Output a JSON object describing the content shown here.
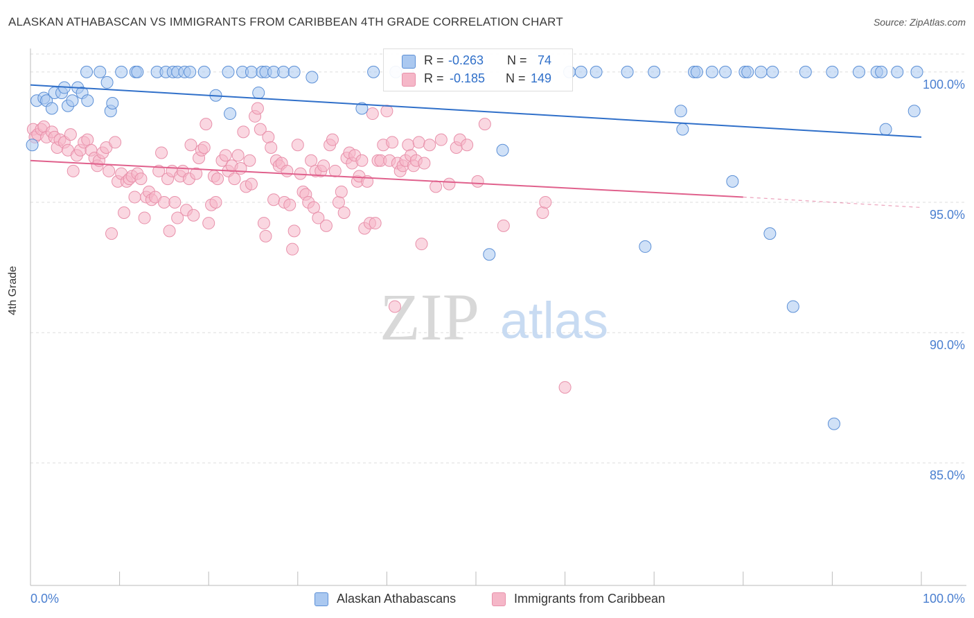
{
  "title": "ALASKAN ATHABASCAN VS IMMIGRANTS FROM CARIBBEAN 4TH GRADE CORRELATION CHART",
  "source": "Source: ZipAtlas.com",
  "watermark": {
    "zip": "ZIP",
    "atlas": "atlas"
  },
  "colors": {
    "blue_fill": "#aac8f0",
    "blue_stroke": "#5b8fd6",
    "blue_line": "#2f6fc9",
    "pink_fill": "#f5b7c8",
    "pink_stroke": "#e890aa",
    "pink_line": "#e0608c",
    "axis_text": "#4a7fd0",
    "grid": "#dddddd"
  },
  "stats": {
    "r_label": "R =",
    "n_label": "N =",
    "blue": {
      "r": "-0.263",
      "n": "74"
    },
    "pink": {
      "r": "-0.185",
      "n": "149"
    }
  },
  "legend": {
    "blue": "Alaskan Athabascans",
    "pink": "Immigrants from Caribbean"
  },
  "chart_data": {
    "type": "scatter",
    "title": "ALASKAN ATHABASCAN VS IMMIGRANTS FROM CARIBBEAN 4TH GRADE CORRELATION CHART",
    "xlabel": "",
    "ylabel": "4th Grade",
    "xlim": [
      0,
      100
    ],
    "ylim": [
      80.3,
      100.9
    ],
    "x_tick_labels": [
      "0.0%",
      "100.0%"
    ],
    "y_ticks": [
      100,
      95,
      90,
      85
    ],
    "y_tick_labels": [
      "100.0%",
      "95.0%",
      "90.0%",
      "85.0%"
    ],
    "grid": "horizontal dashed",
    "legend_position": "bottom",
    "series": [
      {
        "name": "Alaskan Athabascans",
        "color": "#aac8f0",
        "trend": {
          "x": [
            0,
            100
          ],
          "y": [
            99.5,
            97.5
          ]
        },
        "points": [
          [
            0.2,
            97.2
          ],
          [
            0.7,
            98.9
          ],
          [
            1.5,
            99.0
          ],
          [
            1.8,
            98.9
          ],
          [
            2.4,
            98.6
          ],
          [
            2.7,
            99.2
          ],
          [
            3.5,
            99.2
          ],
          [
            3.8,
            99.4
          ],
          [
            4.2,
            98.7
          ],
          [
            4.7,
            98.9
          ],
          [
            5.3,
            99.4
          ],
          [
            5.8,
            99.2
          ],
          [
            6.4,
            98.9
          ],
          [
            6.3,
            100.0
          ],
          [
            7.8,
            100.0
          ],
          [
            8.6,
            99.6
          ],
          [
            9.0,
            98.5
          ],
          [
            9.2,
            98.8
          ],
          [
            10.2,
            100.0
          ],
          [
            11.8,
            100.0
          ],
          [
            12.0,
            100.0
          ],
          [
            14.2,
            100.0
          ],
          [
            15.2,
            100.0
          ],
          [
            16.0,
            100.0
          ],
          [
            16.5,
            100.0
          ],
          [
            17.3,
            100.0
          ],
          [
            17.9,
            100.0
          ],
          [
            19.5,
            100.0
          ],
          [
            20.8,
            99.1
          ],
          [
            22.2,
            100.0
          ],
          [
            22.4,
            98.4
          ],
          [
            23.8,
            100.0
          ],
          [
            24.8,
            100.0
          ],
          [
            25.6,
            99.2
          ],
          [
            26.0,
            100.0
          ],
          [
            26.4,
            100.0
          ],
          [
            27.3,
            100.0
          ],
          [
            28.4,
            100.0
          ],
          [
            29.6,
            100.0
          ],
          [
            31.6,
            99.8
          ],
          [
            37.2,
            98.6
          ],
          [
            38.5,
            100.0
          ],
          [
            41.0,
            100.0
          ],
          [
            42.3,
            100.0
          ],
          [
            50.0,
            100.0
          ],
          [
            51.5,
            93.0
          ],
          [
            53.0,
            97.0
          ],
          [
            60.5,
            100.0
          ],
          [
            61.8,
            100.0
          ],
          [
            63.5,
            100.0
          ],
          [
            67.0,
            100.0
          ],
          [
            69.0,
            93.3
          ],
          [
            70.0,
            100.0
          ],
          [
            73.0,
            98.5
          ],
          [
            73.2,
            97.8
          ],
          [
            74.5,
            100.0
          ],
          [
            74.8,
            100.0
          ],
          [
            76.5,
            100.0
          ],
          [
            78.0,
            100.0
          ],
          [
            78.8,
            95.8
          ],
          [
            80.2,
            100.0
          ],
          [
            80.5,
            100.0
          ],
          [
            82.0,
            100.0
          ],
          [
            83.0,
            93.8
          ],
          [
            83.3,
            100.0
          ],
          [
            85.6,
            91.0
          ],
          [
            87.0,
            100.0
          ],
          [
            90.0,
            100.0
          ],
          [
            90.2,
            86.5
          ],
          [
            93.0,
            100.0
          ],
          [
            95.0,
            100.0
          ],
          [
            95.5,
            100.0
          ],
          [
            96.0,
            97.8
          ],
          [
            99.2,
            98.5
          ],
          [
            99.5,
            100.0
          ],
          [
            97.3,
            100.0
          ]
        ]
      },
      {
        "name": "Immigrants from Caribbean",
        "color": "#f5b7c8",
        "trend": {
          "x": [
            0,
            80
          ],
          "y": [
            96.6,
            95.2
          ]
        },
        "trend_dashed": {
          "x": [
            80,
            100
          ],
          "y": [
            95.2,
            94.8
          ]
        },
        "points": [
          [
            0.3,
            97.8
          ],
          [
            0.5,
            97.5
          ],
          [
            0.8,
            97.6
          ],
          [
            1.2,
            97.8
          ],
          [
            1.5,
            97.9
          ],
          [
            1.8,
            97.5
          ],
          [
            2.4,
            97.7
          ],
          [
            2.7,
            97.5
          ],
          [
            3.0,
            97.1
          ],
          [
            3.3,
            97.4
          ],
          [
            3.8,
            97.3
          ],
          [
            4.2,
            97.0
          ],
          [
            4.5,
            97.6
          ],
          [
            4.8,
            96.2
          ],
          [
            5.2,
            96.8
          ],
          [
            5.6,
            97.0
          ],
          [
            6.0,
            97.3
          ],
          [
            6.4,
            97.4
          ],
          [
            6.8,
            97.0
          ],
          [
            7.2,
            96.7
          ],
          [
            7.5,
            96.4
          ],
          [
            7.7,
            96.6
          ],
          [
            8.1,
            96.9
          ],
          [
            8.5,
            97.1
          ],
          [
            8.8,
            96.2
          ],
          [
            9.1,
            93.8
          ],
          [
            9.5,
            97.3
          ],
          [
            9.8,
            95.8
          ],
          [
            10.2,
            96.1
          ],
          [
            10.5,
            94.6
          ],
          [
            10.8,
            95.8
          ],
          [
            11.1,
            95.9
          ],
          [
            11.4,
            96.0
          ],
          [
            11.7,
            95.2
          ],
          [
            12.0,
            96.1
          ],
          [
            12.4,
            95.9
          ],
          [
            12.8,
            94.4
          ],
          [
            13.0,
            95.2
          ],
          [
            13.3,
            95.4
          ],
          [
            13.6,
            95.1
          ],
          [
            14.0,
            95.2
          ],
          [
            14.4,
            96.2
          ],
          [
            14.7,
            96.9
          ],
          [
            15.0,
            95.0
          ],
          [
            15.4,
            95.9
          ],
          [
            15.6,
            93.9
          ],
          [
            15.9,
            96.2
          ],
          [
            16.2,
            95.0
          ],
          [
            16.5,
            94.4
          ],
          [
            16.8,
            96.0
          ],
          [
            17.1,
            96.2
          ],
          [
            17.5,
            94.7
          ],
          [
            17.8,
            95.9
          ],
          [
            18.0,
            97.2
          ],
          [
            18.3,
            94.5
          ],
          [
            18.6,
            96.1
          ],
          [
            18.9,
            96.7
          ],
          [
            19.2,
            97.0
          ],
          [
            19.5,
            97.1
          ],
          [
            19.7,
            98.0
          ],
          [
            20.0,
            94.2
          ],
          [
            20.3,
            94.9
          ],
          [
            20.6,
            96.0
          ],
          [
            20.8,
            95.0
          ],
          [
            21.0,
            95.9
          ],
          [
            21.5,
            96.6
          ],
          [
            21.9,
            96.8
          ],
          [
            22.2,
            96.2
          ],
          [
            22.6,
            96.4
          ],
          [
            22.9,
            95.9
          ],
          [
            23.3,
            96.8
          ],
          [
            23.6,
            96.3
          ],
          [
            23.9,
            97.7
          ],
          [
            24.2,
            95.6
          ],
          [
            24.6,
            96.6
          ],
          [
            24.8,
            95.7
          ],
          [
            25.2,
            98.3
          ],
          [
            25.5,
            98.6
          ],
          [
            25.8,
            97.8
          ],
          [
            26.2,
            94.2
          ],
          [
            26.4,
            93.7
          ],
          [
            26.7,
            97.5
          ],
          [
            27.0,
            97.1
          ],
          [
            27.3,
            95.1
          ],
          [
            27.6,
            96.6
          ],
          [
            27.9,
            96.4
          ],
          [
            28.2,
            96.5
          ],
          [
            28.5,
            95.0
          ],
          [
            28.8,
            96.2
          ],
          [
            29.1,
            94.9
          ],
          [
            29.4,
            93.2
          ],
          [
            29.6,
            93.9
          ],
          [
            30.0,
            97.2
          ],
          [
            30.3,
            96.1
          ],
          [
            30.6,
            95.4
          ],
          [
            30.9,
            95.3
          ],
          [
            31.2,
            95.0
          ],
          [
            31.5,
            96.6
          ],
          [
            31.8,
            94.8
          ],
          [
            32.0,
            96.2
          ],
          [
            32.3,
            94.4
          ],
          [
            32.6,
            96.2
          ],
          [
            32.9,
            96.4
          ],
          [
            33.2,
            94.1
          ],
          [
            33.6,
            97.2
          ],
          [
            33.9,
            97.4
          ],
          [
            34.2,
            96.2
          ],
          [
            34.6,
            95.0
          ],
          [
            34.9,
            95.4
          ],
          [
            35.2,
            94.6
          ],
          [
            35.5,
            96.7
          ],
          [
            35.8,
            96.9
          ],
          [
            36.1,
            96.5
          ],
          [
            36.4,
            96.8
          ],
          [
            36.7,
            95.8
          ],
          [
            36.9,
            96.0
          ],
          [
            37.2,
            96.6
          ],
          [
            37.5,
            94.0
          ],
          [
            37.8,
            95.8
          ],
          [
            38.1,
            94.2
          ],
          [
            38.4,
            98.4
          ],
          [
            38.7,
            94.2
          ],
          [
            39.0,
            96.6
          ],
          [
            39.3,
            96.6
          ],
          [
            39.6,
            97.2
          ],
          [
            40.0,
            98.5
          ],
          [
            40.3,
            96.6
          ],
          [
            40.6,
            97.3
          ],
          [
            40.9,
            91.0
          ],
          [
            41.2,
            96.5
          ],
          [
            41.5,
            96.2
          ],
          [
            41.8,
            96.4
          ],
          [
            42.1,
            96.6
          ],
          [
            42.4,
            97.2
          ],
          [
            42.7,
            96.8
          ],
          [
            43.0,
            96.4
          ],
          [
            43.3,
            96.6
          ],
          [
            43.6,
            97.3
          ],
          [
            43.9,
            93.4
          ],
          [
            44.2,
            96.5
          ],
          [
            44.8,
            97.2
          ],
          [
            45.5,
            95.6
          ],
          [
            46.1,
            97.4
          ],
          [
            47.0,
            95.7
          ],
          [
            47.8,
            97.1
          ],
          [
            48.2,
            97.4
          ],
          [
            49.0,
            97.2
          ],
          [
            50.2,
            95.8
          ],
          [
            51.0,
            98.0
          ],
          [
            53.1,
            94.1
          ],
          [
            57.5,
            94.6
          ],
          [
            57.8,
            95.0
          ],
          [
            60.0,
            87.9
          ]
        ]
      }
    ]
  }
}
